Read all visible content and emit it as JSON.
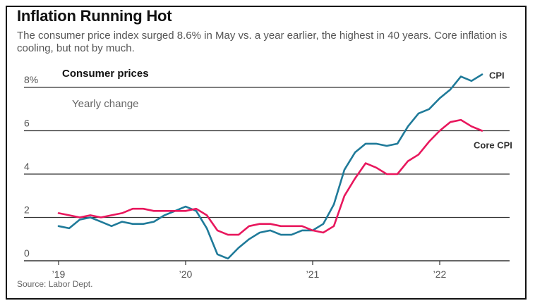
{
  "header": {
    "title": "Inflation Running Hot",
    "subtitle": "The consumer price index surged 8.6% in May vs. a year earlier, the highest in 40 years. Core inflation is cooling, but not by much."
  },
  "panel": {
    "title": "Consumer prices",
    "subtitle": "Yearly change"
  },
  "source": "Source: Labor Dept.",
  "colors": {
    "cpi": "#1f7a99",
    "core": "#e8175d",
    "grid": "#333333"
  },
  "chart_data": {
    "type": "line",
    "title": "Consumer prices",
    "subtitle": "Yearly change",
    "xlabel": "",
    "ylabel": "",
    "ylim": [
      0,
      8.6
    ],
    "y_ticks": [
      {
        "value": 0,
        "label": "0"
      },
      {
        "value": 2,
        "label": "2"
      },
      {
        "value": 4,
        "label": "4"
      },
      {
        "value": 6,
        "label": "6"
      },
      {
        "value": 8,
        "label": "8%"
      }
    ],
    "x_ticks": [
      {
        "value": 0,
        "label": "’19"
      },
      {
        "value": 12,
        "label": "’20"
      },
      {
        "value": 24,
        "label": "’21"
      },
      {
        "value": 36,
        "label": "’22"
      }
    ],
    "grid": true,
    "legend": "end-of-line labels",
    "series": [
      {
        "name": "CPI",
        "color": "#1f7a99",
        "values": [
          1.6,
          1.5,
          1.9,
          2.0,
          1.8,
          1.6,
          1.8,
          1.7,
          1.7,
          1.8,
          2.1,
          2.3,
          2.5,
          2.3,
          1.5,
          0.3,
          0.1,
          0.6,
          1.0,
          1.3,
          1.4,
          1.2,
          1.2,
          1.4,
          1.4,
          1.7,
          2.6,
          4.2,
          5.0,
          5.4,
          5.4,
          5.3,
          5.4,
          6.2,
          6.8,
          7.0,
          7.5,
          7.9,
          8.5,
          8.3,
          8.6
        ]
      },
      {
        "name": "Core CPI",
        "color": "#e8175d",
        "values": [
          2.2,
          2.1,
          2.0,
          2.1,
          2.0,
          2.1,
          2.2,
          2.4,
          2.4,
          2.3,
          2.3,
          2.3,
          2.3,
          2.4,
          2.1,
          1.4,
          1.2,
          1.2,
          1.6,
          1.7,
          1.7,
          1.6,
          1.6,
          1.6,
          1.4,
          1.3,
          1.6,
          3.0,
          3.8,
          4.5,
          4.3,
          4.0,
          4.0,
          4.6,
          4.9,
          5.5,
          6.0,
          6.4,
          6.5,
          6.2,
          6.0
        ]
      }
    ]
  }
}
